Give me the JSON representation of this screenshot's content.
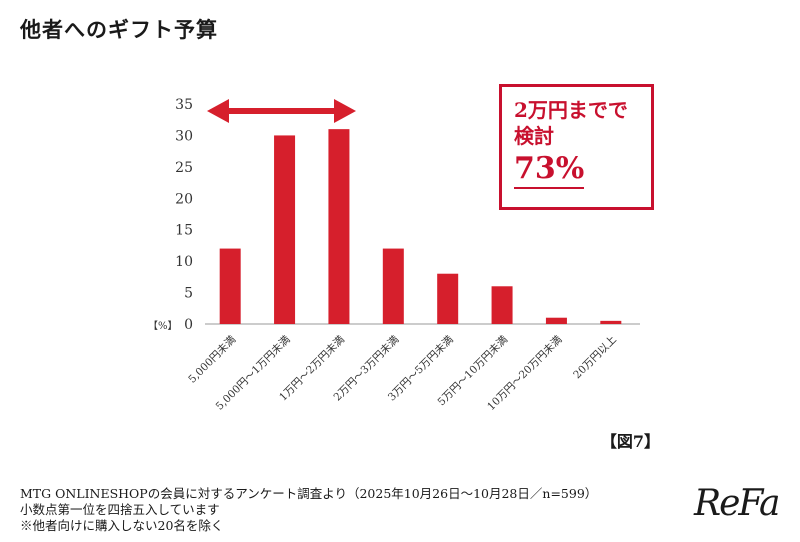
{
  "title": "他者へのギフト予算",
  "callout": {
    "line1": "2万円までで",
    "line2": "検討",
    "percent": "73%"
  },
  "figure_label": "【図7】",
  "notes": [
    "MTG ONLINESHOPの会員に対するアンケート調査より（2025年10月26日〜10月28日／n=599）",
    "小数点第一位を四捨五入しています",
    "※他者向けに購入しない20名を除く"
  ],
  "logo": "ReFa",
  "chart_data": {
    "type": "bar",
    "categories": [
      "5,000円未満",
      "5,000円〜1万円未満",
      "1万円〜2万円未満",
      "2万円〜3万円未満",
      "3万円〜5万円未満",
      "5万円〜10万円未満",
      "10万円〜20万円未満",
      "20万円以上"
    ],
    "values": [
      12,
      30,
      31,
      12,
      8,
      6,
      1,
      0.5
    ],
    "ylabel": "【%】",
    "ylim": [
      0,
      35
    ],
    "yticks": [
      0,
      5,
      10,
      15,
      20,
      25,
      30,
      35
    ],
    "color": "#d61f2c",
    "grid": false
  }
}
